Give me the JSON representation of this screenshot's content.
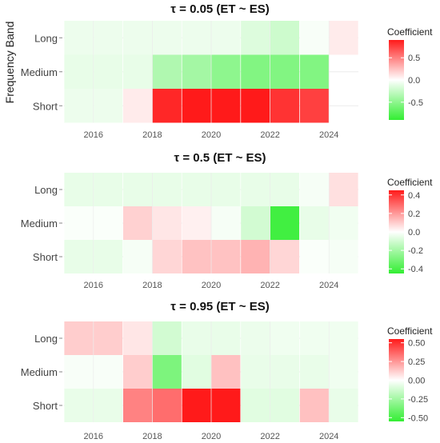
{
  "y_axis_title": "Frequency Band",
  "chart_data": [
    {
      "type": "heatmap",
      "title": "τ = 0.05  (ET ~ ES)",
      "ylabel": "Frequency Band",
      "y_categories": [
        "Long",
        "Medium",
        "Short"
      ],
      "x_ticks": [
        2016,
        2018,
        2020,
        2022,
        2024
      ],
      "x_years": [
        2015.5,
        2016.5,
        2017.5,
        2018.5,
        2019.5,
        2020.5,
        2021.5,
        2022.5,
        2023.5,
        2024.5
      ],
      "legend": {
        "title": "Coefficient",
        "min": -0.9,
        "max": 0.9,
        "ticks": [
          0.5,
          0,
          -0.5
        ],
        "tick_labels": [
          "0.5",
          "0.0",
          "-0.5"
        ],
        "colors": [
          "#33ee33",
          "#ffffff",
          "#ff1a1a"
        ]
      },
      "values": [
        [
          -0.08,
          -0.08,
          -0.08,
          -0.08,
          -0.08,
          -0.08,
          -0.15,
          -0.22,
          -0.03,
          0.08
        ],
        [
          -0.1,
          -0.1,
          -0.1,
          -0.35,
          -0.4,
          -0.5,
          -0.55,
          -0.55,
          -0.55,
          null
        ],
        [
          -0.08,
          -0.08,
          0.08,
          0.85,
          0.95,
          0.95,
          0.95,
          0.8,
          0.75,
          null
        ]
      ]
    },
    {
      "type": "heatmap",
      "title": "τ = 0.5  (ET ~ ES)",
      "ylabel": "Frequency Band",
      "y_categories": [
        "Long",
        "Medium",
        "Short"
      ],
      "x_ticks": [
        2016,
        2018,
        2020,
        2022,
        2024
      ],
      "x_years": [
        2015.5,
        2016.5,
        2017.5,
        2018.5,
        2019.5,
        2020.5,
        2021.5,
        2022.5,
        2023.5,
        2024.5
      ],
      "legend": {
        "title": "Coefficient",
        "min": -0.45,
        "max": 0.45,
        "ticks": [
          0.4,
          0.2,
          0,
          -0.2,
          -0.4
        ],
        "tick_labels": [
          "0.4",
          "0.2",
          "0.0",
          "-0.2",
          "-0.4"
        ],
        "colors": [
          "#33ee33",
          "#ffffff",
          "#ff1a1a"
        ]
      },
      "values": [
        [
          -0.05,
          -0.05,
          -0.05,
          -0.05,
          -0.05,
          -0.05,
          -0.05,
          -0.05,
          -0.02,
          0.06
        ],
        [
          -0.01,
          -0.01,
          0.09,
          0.05,
          0.03,
          -0.02,
          -0.1,
          -0.42,
          -0.05,
          -0.03
        ],
        [
          -0.05,
          -0.05,
          -0.02,
          0.08,
          0.12,
          0.12,
          0.15,
          0.08,
          -0.01,
          -0.02
        ]
      ]
    },
    {
      "type": "heatmap",
      "title": "τ = 0.95  (ET ~ ES)",
      "ylabel": "Frequency Band",
      "y_categories": [
        "Long",
        "Medium",
        "Short"
      ],
      "x_ticks": [
        2016,
        2018,
        2020,
        2022,
        2024
      ],
      "x_years": [
        2015.5,
        2016.5,
        2017.5,
        2018.5,
        2019.5,
        2020.5,
        2021.5,
        2022.5,
        2023.5,
        2024.5
      ],
      "legend": {
        "title": "Coefficient",
        "min": -0.55,
        "max": 0.55,
        "ticks": [
          0.5,
          0.25,
          0,
          -0.25,
          -0.5
        ],
        "tick_labels": [
          "0.50",
          "0.25",
          "0.00",
          "-0.25",
          "-0.50"
        ],
        "colors": [
          "#33ee33",
          "#ffffff",
          "#ff1a1a"
        ]
      },
      "values": [
        [
          0.12,
          0.12,
          0.06,
          -0.12,
          -0.06,
          -0.06,
          -0.05,
          -0.04,
          -0.04,
          -0.04
        ],
        [
          -0.02,
          -0.02,
          0.12,
          -0.35,
          -0.08,
          0.15,
          -0.06,
          -0.06,
          -0.06,
          -0.04
        ],
        [
          -0.06,
          -0.06,
          0.3,
          0.35,
          0.55,
          0.55,
          -0.08,
          -0.08,
          0.15,
          -0.06
        ]
      ]
    }
  ]
}
